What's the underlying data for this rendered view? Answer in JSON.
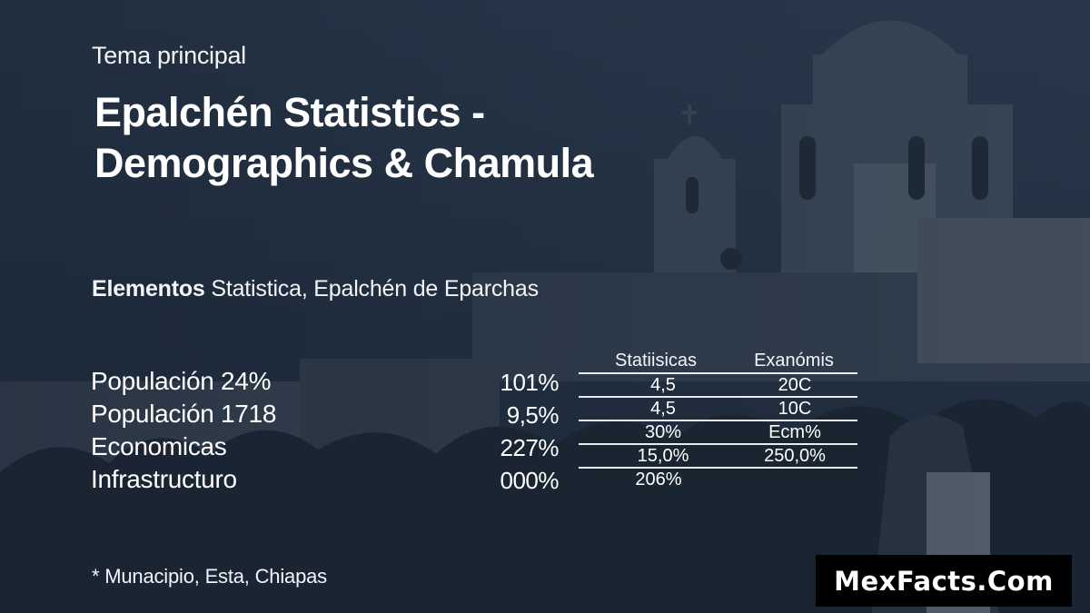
{
  "slide": {
    "eyebrow": "Tema principal",
    "title_line1": "Epalchén Statistics -",
    "title_line2": "Demographics & Chamula",
    "subtitle_bold": "Elementos",
    "subtitle_rest": " Statistica, Epalchén de Eparchas",
    "footnote": "* Munacipio, Esta, Chiapas",
    "brand": "MexFacts.Com"
  },
  "metrics": [
    {
      "label": "Populación 24%",
      "value": "101%"
    },
    {
      "label": "Populación 1718",
      "value": "9,5%"
    },
    {
      "label": "Economicas",
      "value": "227%"
    },
    {
      "label": "Infrastructuro",
      "value": "000%"
    }
  ],
  "table": {
    "headers": [
      "Statiisicas",
      "Exanómis"
    ],
    "rows": [
      [
        "4,5",
        "20C"
      ],
      [
        "4,5",
        "10C"
      ],
      [
        "30%",
        "Ecm%"
      ],
      [
        "15,0%",
        "250,0%"
      ],
      [
        "206%",
        ""
      ]
    ]
  },
  "colors": {
    "overlay": "#1e2a39",
    "text": "#ffffff",
    "brand_bg": "#000000"
  }
}
